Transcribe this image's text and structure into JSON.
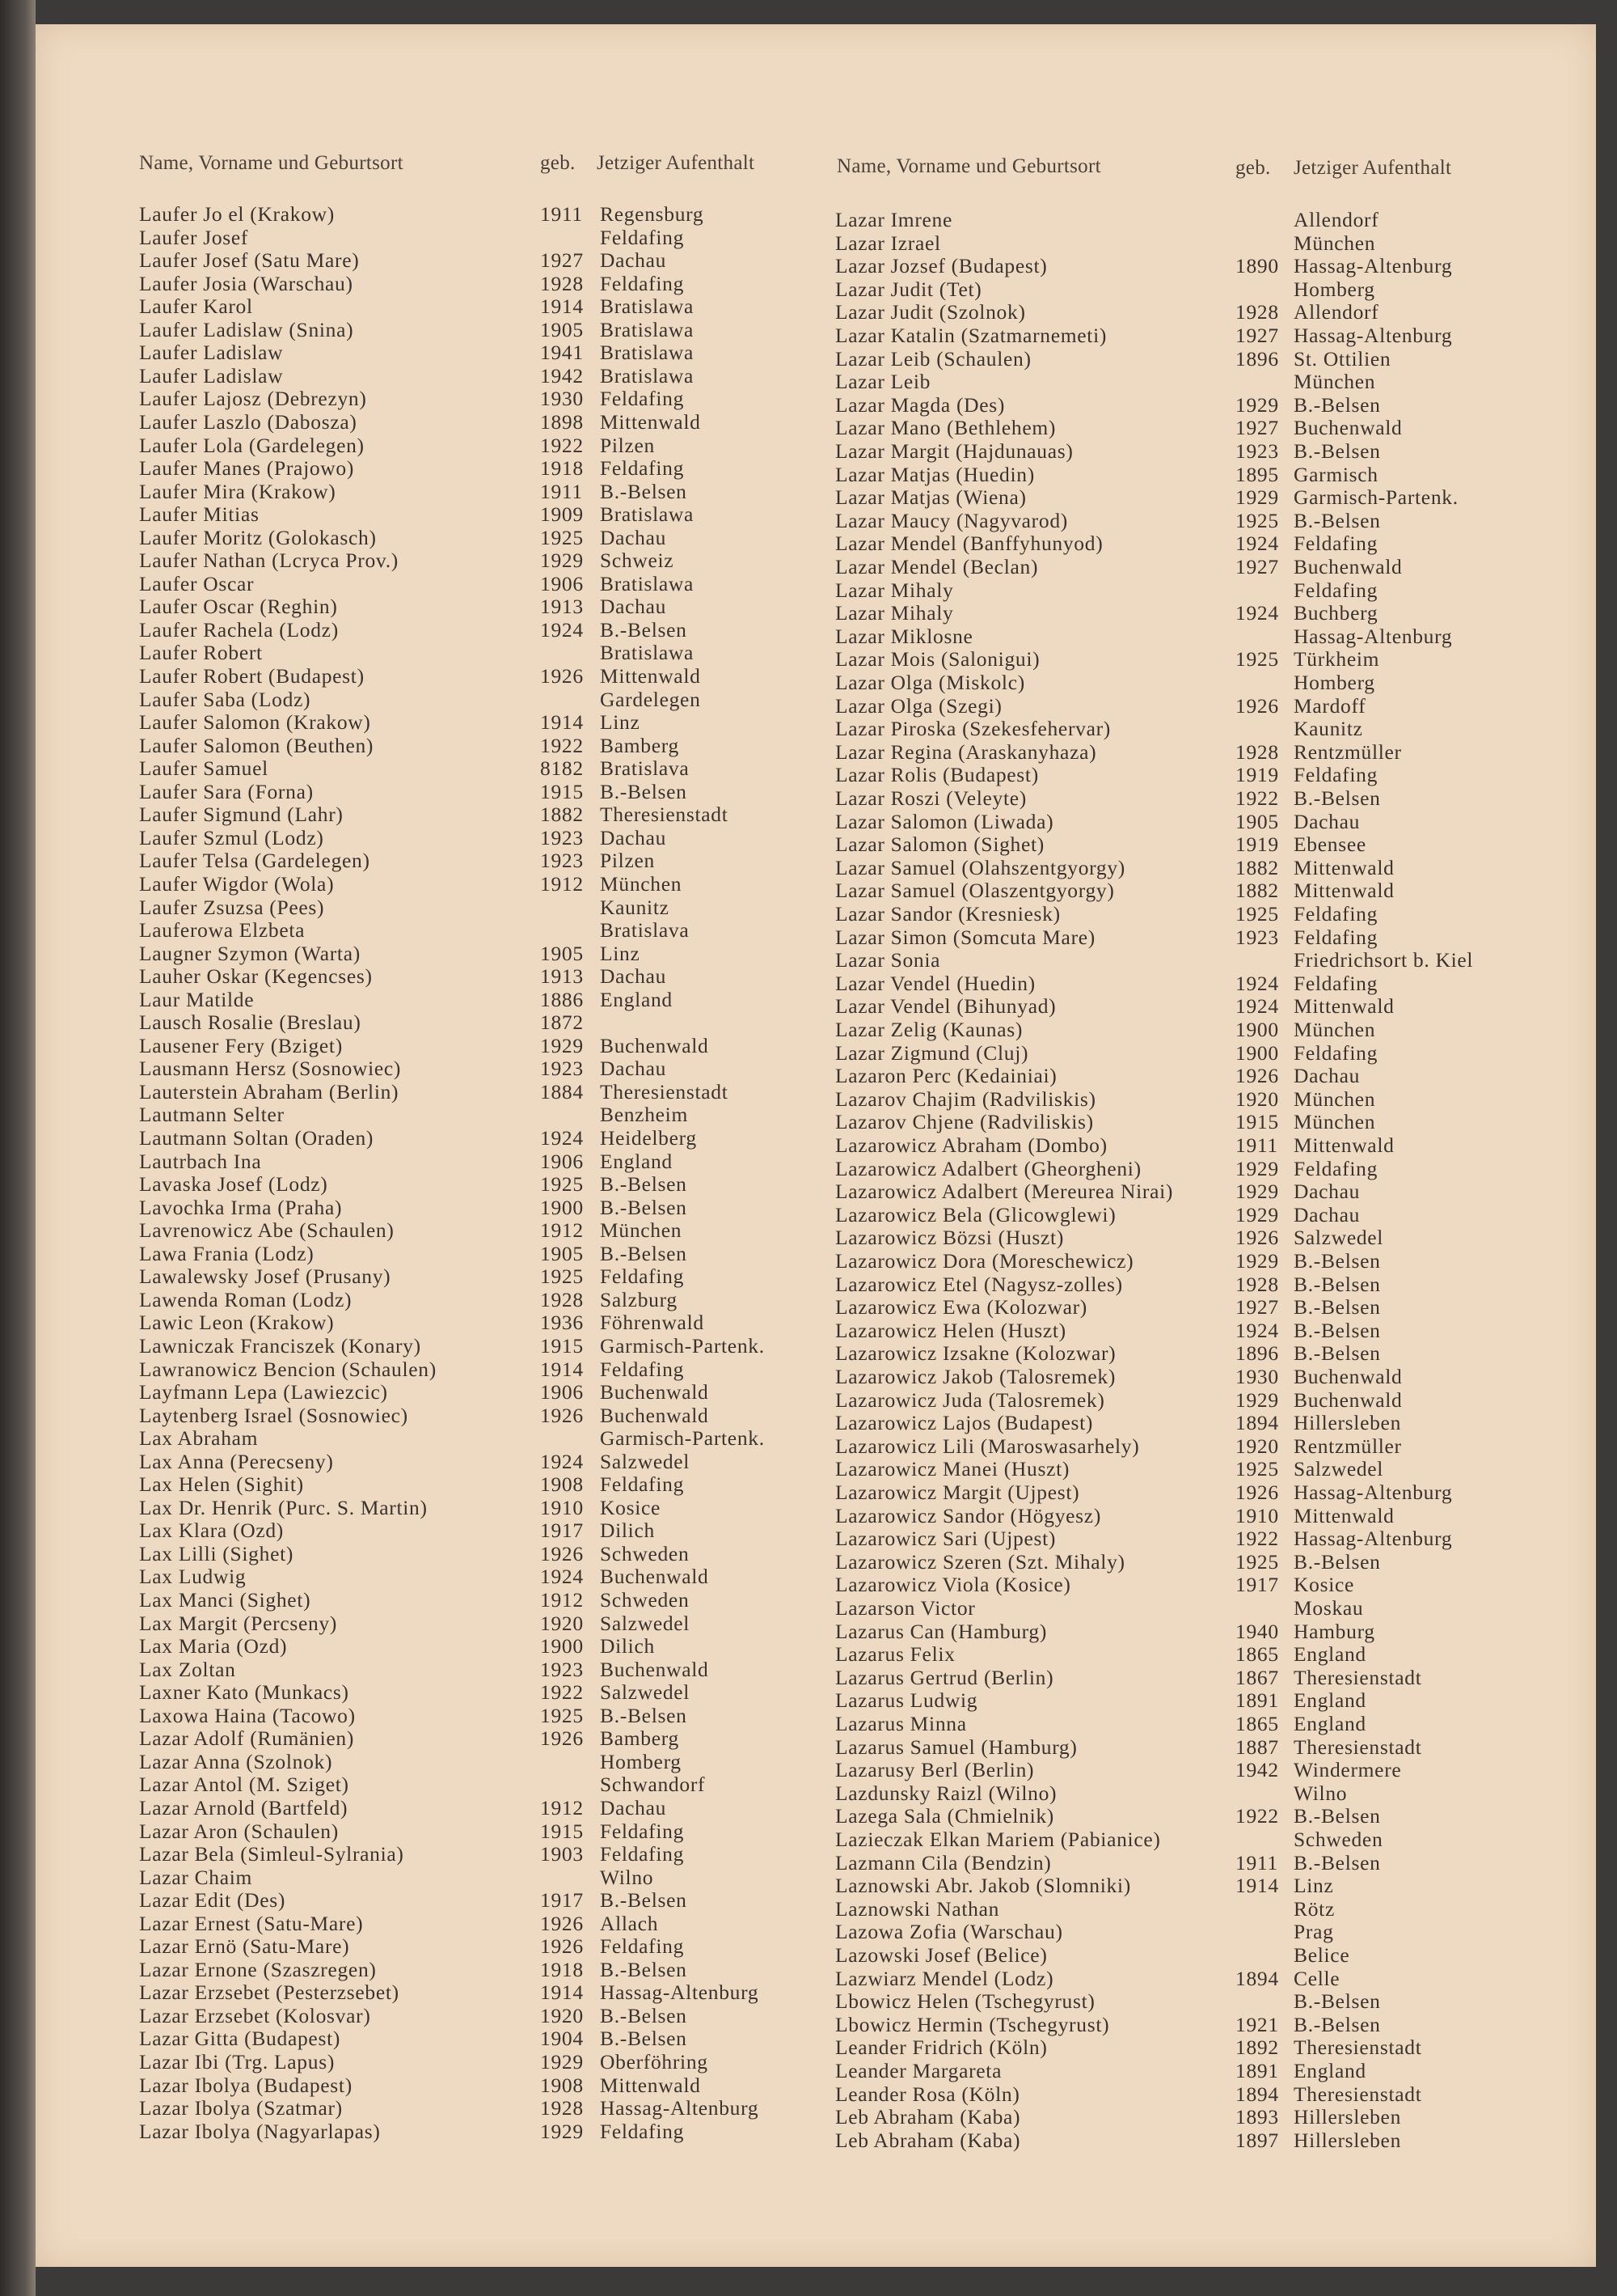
{
  "header": {
    "name_col": "Name, Vorname und Geburtsort",
    "year_col": "geb.",
    "place_col": "Jetziger Aufenthalt"
  },
  "left_column": [
    [
      "Laufer Jo el (Krakow)",
      "1911",
      "Regensburg"
    ],
    [
      "Laufer Josef",
      "",
      "Feldafing"
    ],
    [
      "Laufer Josef (Satu Mare)",
      "1927",
      "Dachau"
    ],
    [
      "Laufer Josia (Warschau)",
      "1928",
      "Feldafing"
    ],
    [
      "Laufer Karol",
      "1914",
      "Bratislawa"
    ],
    [
      "Laufer Ladislaw (Snina)",
      "1905",
      "Bratislawa"
    ],
    [
      "Laufer Ladislaw",
      "1941",
      "Bratislawa"
    ],
    [
      "Laufer Ladislaw",
      "1942",
      "Bratislawa"
    ],
    [
      "Laufer Lajosz (Debrezyn)",
      "1930",
      "Feldafing"
    ],
    [
      "Laufer Laszlo (Dabosza)",
      "1898",
      "Mittenwald"
    ],
    [
      "Laufer Lola (Gardelegen)",
      "1922",
      "Pilzen"
    ],
    [
      "Laufer Manes (Prajowo)",
      "1918",
      "Feldafing"
    ],
    [
      "Laufer Mira (Krakow)",
      "1911",
      "B.-Belsen"
    ],
    [
      "Laufer Mitias",
      "1909",
      "Bratislawa"
    ],
    [
      "Laufer Moritz (Golokasch)",
      "1925",
      "Dachau"
    ],
    [
      "Laufer Nathan (Lcryca Prov.)",
      "1929",
      "Schweiz"
    ],
    [
      "Laufer Oscar",
      "1906",
      "Bratislawa"
    ],
    [
      "Laufer Oscar (Reghin)",
      "1913",
      "Dachau"
    ],
    [
      "Laufer Rachela (Lodz)",
      "1924",
      "B.-Belsen"
    ],
    [
      "Laufer Robert",
      "",
      "Bratislawa"
    ],
    [
      "Laufer Robert (Budapest)",
      "1926",
      "Mittenwald"
    ],
    [
      "Laufer Saba (Lodz)",
      "",
      "Gardelegen"
    ],
    [
      "Laufer Salomon (Krakow)",
      "1914",
      "Linz"
    ],
    [
      "Laufer Salomon (Beuthen)",
      "1922",
      "Bamberg"
    ],
    [
      "Laufer Samuel",
      "8182",
      "Bratislava"
    ],
    [
      "Laufer Sara (Forna)",
      "1915",
      "B.-Belsen"
    ],
    [
      "Laufer Sigmund (Lahr)",
      "1882",
      "Theresienstadt"
    ],
    [
      "Laufer Szmul (Lodz)",
      "1923",
      "Dachau"
    ],
    [
      "Laufer Telsa (Gardelegen)",
      "1923",
      "Pilzen"
    ],
    [
      "Laufer Wigdor (Wola)",
      "1912",
      "München"
    ],
    [
      "Laufer Zsuzsa (Pees)",
      "",
      "Kaunitz"
    ],
    [
      "Lauferowa Elzbeta",
      "",
      "Bratislava"
    ],
    [
      "Laugner Szymon (Warta)",
      "1905",
      "Linz"
    ],
    [
      "Lauher Oskar (Kegencses)",
      "1913",
      "Dachau"
    ],
    [
      "Laur Matilde",
      "1886",
      "England"
    ],
    [
      "Lausch Rosalie (Breslau)",
      "1872",
      ""
    ],
    [
      "Lausener Fery (Bziget)",
      "1929",
      "Buchenwald"
    ],
    [
      "Lausmann Hersz (Sosnowiec)",
      "1923",
      "Dachau"
    ],
    [
      "Lauterstein Abraham (Berlin)",
      "1884",
      "Theresienstadt"
    ],
    [
      "Lautmann Selter",
      "",
      "Benzheim"
    ],
    [
      "Lautmann Soltan (Oraden)",
      "1924",
      "Heidelberg"
    ],
    [
      "Lautrbach Ina",
      "1906",
      "England"
    ],
    [
      "Lavaska Josef (Lodz)",
      "1925",
      "B.-Belsen"
    ],
    [
      "Lavochka Irma (Praha)",
      "1900",
      "B.-Belsen"
    ],
    [
      "Lavrenowicz Abe (Schaulen)",
      "1912",
      "München"
    ],
    [
      "Lawa Frania (Lodz)",
      "1905",
      "B.-Belsen"
    ],
    [
      "Lawalewsky Josef (Prusany)",
      "1925",
      "Feldafing"
    ],
    [
      "Lawenda Roman (Lodz)",
      "1928",
      "Salzburg"
    ],
    [
      "Lawic Leon (Krakow)",
      "1936",
      "Föhrenwald"
    ],
    [
      "Lawniczak Franciszek (Konary)",
      "1915",
      "Garmisch-Partenk."
    ],
    [
      "Lawranowicz Bencion (Schaulen)",
      "1914",
      "Feldafing"
    ],
    [
      "Layfmann Lepa (Lawiezcic)",
      "1906",
      "Buchenwald"
    ],
    [
      "Laytenberg Israel (Sosnowiec)",
      "1926",
      "Buchenwald"
    ],
    [
      "Lax Abraham",
      "",
      "Garmisch-Partenk."
    ],
    [
      "Lax Anna (Perecseny)",
      "1924",
      "Salzwedel"
    ],
    [
      "Lax Helen (Sighit)",
      "1908",
      "Feldafing"
    ],
    [
      "Lax Dr. Henrik (Purc. S. Martin)",
      "1910",
      "Kosice"
    ],
    [
      "Lax Klara (Ozd)",
      "1917",
      "Dilich"
    ],
    [
      "Lax Lilli (Sighet)",
      "1926",
      "Schweden"
    ],
    [
      "Lax Ludwig",
      "1924",
      "Buchenwald"
    ],
    [
      "Lax Manci (Sighet)",
      "1912",
      "Schweden"
    ],
    [
      "Lax Margit (Percseny)",
      "1920",
      "Salzwedel"
    ],
    [
      "Lax Maria (Ozd)",
      "1900",
      "Dilich"
    ],
    [
      "Lax Zoltan",
      "1923",
      "Buchenwald"
    ],
    [
      "Laxner Kato (Munkacs)",
      "1922",
      "Salzwedel"
    ],
    [
      "Laxowa Haina (Tacowo)",
      "1925",
      "B.-Belsen"
    ],
    [
      "Lazar Adolf (Rumänien)",
      "1926",
      "Bamberg"
    ],
    [
      "Lazar Anna (Szolnok)",
      "",
      "Homberg"
    ],
    [
      "Lazar Antol (M. Sziget)",
      "",
      "Schwandorf"
    ],
    [
      "Lazar Arnold (Bartfeld)",
      "1912",
      "Dachau"
    ],
    [
      "Lazar Aron (Schaulen)",
      "1915",
      "Feldafing"
    ],
    [
      "Lazar Bela (Simleul-Sylrania)",
      "1903",
      "Feldafing"
    ],
    [
      "Lazar Chaim",
      "",
      "Wilno"
    ],
    [
      "Lazar Edit (Des)",
      "1917",
      "B.-Belsen"
    ],
    [
      "Lazar Ernest (Satu-Mare)",
      "1926",
      "Allach"
    ],
    [
      "Lazar Ernö (Satu-Mare)",
      "1926",
      "Feldafing"
    ],
    [
      "Lazar Ernone (Szaszregen)",
      "1918",
      "B.-Belsen"
    ],
    [
      "Lazar Erzsebet (Pesterzsebet)",
      "1914",
      "Hassag-Altenburg"
    ],
    [
      "Lazar Erzsebet (Kolosvar)",
      "1920",
      "B.-Belsen"
    ],
    [
      "Lazar Gitta (Budapest)",
      "1904",
      "B.-Belsen"
    ],
    [
      "Lazar Ibi (Trg. Lapus)",
      "1929",
      "Oberföhring"
    ],
    [
      "Lazar Ibolya (Budapest)",
      "1908",
      "Mittenwald"
    ],
    [
      "Lazar Ibolya (Szatmar)",
      "1928",
      "Hassag-Altenburg"
    ],
    [
      "Lazar Ibolya (Nagyarlapas)",
      "1929",
      "Feldafing"
    ]
  ],
  "right_column": [
    [
      "Lazar Imrene",
      "",
      "Allendorf"
    ],
    [
      "Lazar Izrael",
      "",
      "München"
    ],
    [
      "Lazar Jozsef (Budapest)",
      "1890",
      "Hassag-Altenburg"
    ],
    [
      "Lazar Judit (Tet)",
      "",
      "Homberg"
    ],
    [
      "Lazar Judit (Szolnok)",
      "1928",
      "Allendorf"
    ],
    [
      "Lazar Katalin (Szatmarnemeti)",
      "1927",
      "Hassag-Altenburg"
    ],
    [
      "Lazar Leib (Schaulen)",
      "1896",
      "St. Ottilien"
    ],
    [
      "Lazar Leib",
      "",
      "München"
    ],
    [
      "Lazar Magda (Des)",
      "1929",
      "B.-Belsen"
    ],
    [
      "Lazar Mano (Bethlehem)",
      "1927",
      "Buchenwald"
    ],
    [
      "Lazar Margit (Hajdunauas)",
      "1923",
      "B.-Belsen"
    ],
    [
      "Lazar Matjas (Huedin)",
      "1895",
      "Garmisch"
    ],
    [
      "Lazar Matjas (Wiena)",
      "1929",
      "Garmisch-Partenk."
    ],
    [
      "Lazar Maucy (Nagyvarod)",
      "1925",
      "B.-Belsen"
    ],
    [
      "Lazar Mendel (Banffyhunyod)",
      "1924",
      "Feldafing"
    ],
    [
      "Lazar Mendel (Beclan)",
      "1927",
      "Buchenwald"
    ],
    [
      "Lazar Mihaly",
      "",
      "Feldafing"
    ],
    [
      "Lazar Mihaly",
      "1924",
      "Buchberg"
    ],
    [
      "Lazar Miklosne",
      "",
      "Hassag-Altenburg"
    ],
    [
      "Lazar Mois (Salonigui)",
      "1925",
      "Türkheim"
    ],
    [
      "Lazar Olga (Miskolc)",
      "",
      "Homberg"
    ],
    [
      "Lazar Olga (Szegi)",
      "1926",
      "Mardoff"
    ],
    [
      "Lazar Piroska (Szekesfehervar)",
      "",
      "Kaunitz"
    ],
    [
      "Lazar Regina (Araskanyhaza)",
      "1928",
      "Rentzmüller"
    ],
    [
      "Lazar Rolis (Budapest)",
      "1919",
      "Feldafing"
    ],
    [
      "Lazar Roszi (Veleyte)",
      "1922",
      "B.-Belsen"
    ],
    [
      "Lazar Salomon (Liwada)",
      "1905",
      "Dachau"
    ],
    [
      "Lazar Salomon (Sighet)",
      "1919",
      "Ebensee"
    ],
    [
      "Lazar Samuel (Olahszentgyorgy)",
      "1882",
      "Mittenwald"
    ],
    [
      "Lazar Samuel (Olaszentgyorgy)",
      "1882",
      "Mittenwald"
    ],
    [
      "Lazar Sandor (Kresniesk)",
      "1925",
      "Feldafing"
    ],
    [
      "Lazar Simon (Somcuta Mare)",
      "1923",
      "Feldafing"
    ],
    [
      "Lazar Sonia",
      "",
      "Friedrichsort b. Kiel"
    ],
    [
      "Lazar Vendel (Huedin)",
      "1924",
      "Feldafing"
    ],
    [
      "Lazar Vendel (Bihunyad)",
      "1924",
      "Mittenwald"
    ],
    [
      "Lazar Zelig (Kaunas)",
      "1900",
      "München"
    ],
    [
      "Lazar Zigmund (Cluj)",
      "1900",
      "Feldafing"
    ],
    [
      "Lazaron Perc (Kedainiai)",
      "1926",
      "Dachau"
    ],
    [
      "Lazarov Chajim (Radviliskis)",
      "1920",
      "München"
    ],
    [
      "Lazarov Chjene (Radviliskis)",
      "1915",
      "München"
    ],
    [
      "Lazarowicz Abraham (Dombo)",
      "1911",
      "Mittenwald"
    ],
    [
      "Lazarowicz Adalbert (Gheorgheni)",
      "1929",
      "Feldafing"
    ],
    [
      "Lazarowicz Adalbert (Mereurea Nirai)",
      "1929",
      "Dachau"
    ],
    [
      "Lazarowicz Bela (Glicowglewi)",
      "1929",
      "Dachau"
    ],
    [
      "Lazarowicz Bözsi (Huszt)",
      "1926",
      "Salzwedel"
    ],
    [
      "Lazarowicz Dora (Moreschewicz)",
      "1929",
      "B.-Belsen"
    ],
    [
      "Lazarowicz Etel (Nagysz-zolles)",
      "1928",
      "B.-Belsen"
    ],
    [
      "Lazarowicz Ewa (Kolozwar)",
      "1927",
      "B.-Belsen"
    ],
    [
      "Lazarowicz Helen (Huszt)",
      "1924",
      "B.-Belsen"
    ],
    [
      "Lazarowicz Izsakne (Kolozwar)",
      "1896",
      "B.-Belsen"
    ],
    [
      "Lazarowicz Jakob (Talosremek)",
      "1930",
      "Buchenwald"
    ],
    [
      "Lazarowicz Juda (Talosremek)",
      "1929",
      "Buchenwald"
    ],
    [
      "Lazarowicz Lajos (Budapest)",
      "1894",
      "Hillersleben"
    ],
    [
      "Lazarowicz Lili (Maroswasarhely)",
      "1920",
      "Rentzmüller"
    ],
    [
      "Lazarowicz Manei (Huszt)",
      "1925",
      "Salzwedel"
    ],
    [
      "Lazarowicz Margit (Ujpest)",
      "1926",
      "Hassag-Altenburg"
    ],
    [
      "Lazarowicz Sandor (Högyesz)",
      "1910",
      "Mittenwald"
    ],
    [
      "Lazarowicz Sari (Ujpest)",
      "1922",
      "Hassag-Altenburg"
    ],
    [
      "Lazarowicz Szeren (Szt. Mihaly)",
      "1925",
      "B.-Belsen"
    ],
    [
      "Lazarowicz Viola (Kosice)",
      "1917",
      "Kosice"
    ],
    [
      "Lazarson Victor",
      "",
      "Moskau"
    ],
    [
      "Lazarus Can (Hamburg)",
      "1940",
      "Hamburg"
    ],
    [
      "Lazarus Felix",
      "1865",
      "England"
    ],
    [
      "Lazarus Gertrud (Berlin)",
      "1867",
      "Theresienstadt"
    ],
    [
      "Lazarus Ludwig",
      "1891",
      "England"
    ],
    [
      "Lazarus Minna",
      "1865",
      "England"
    ],
    [
      "Lazarus Samuel (Hamburg)",
      "1887",
      "Theresienstadt"
    ],
    [
      "Lazarusy Berl (Berlin)",
      "1942",
      "Windermere"
    ],
    [
      "Lazdunsky Raizl (Wilno)",
      "",
      "Wilno"
    ],
    [
      "Lazega Sala (Chmielnik)",
      "1922",
      "B.-Belsen"
    ],
    [
      "Lazieczak Elkan Mariem (Pabianice)",
      "",
      "Schweden"
    ],
    [
      "Lazmann Cila (Bendzin)",
      "1911",
      "B.-Belsen"
    ],
    [
      "Laznowski Abr. Jakob (Slomniki)",
      "1914",
      "Linz"
    ],
    [
      "Laznowski Nathan",
      "",
      "Rötz"
    ],
    [
      "Lazowa Zofia (Warschau)",
      "",
      "Prag"
    ],
    [
      "Lazowski Josef (Belice)",
      "",
      "Belice"
    ],
    [
      "Lazwiarz Mendel (Lodz)",
      "1894",
      "Celle"
    ],
    [
      "Lbowicz Helen (Tschegyrust)",
      "",
      "B.-Belsen"
    ],
    [
      "Lbowicz Hermin (Tschegyrust)",
      "1921",
      "B.-Belsen"
    ],
    [
      "Leander Fridrich (Köln)",
      "1892",
      "Theresienstadt"
    ],
    [
      "Leander Margareta",
      "1891",
      "England"
    ],
    [
      "Leander Rosa (Köln)",
      "1894",
      "Theresienstadt"
    ],
    [
      "Leb Abraham (Kaba)",
      "1893",
      "Hillersleben"
    ],
    [
      "Leb Abraham (Kaba)",
      "1897",
      "Hillersleben"
    ]
  ]
}
